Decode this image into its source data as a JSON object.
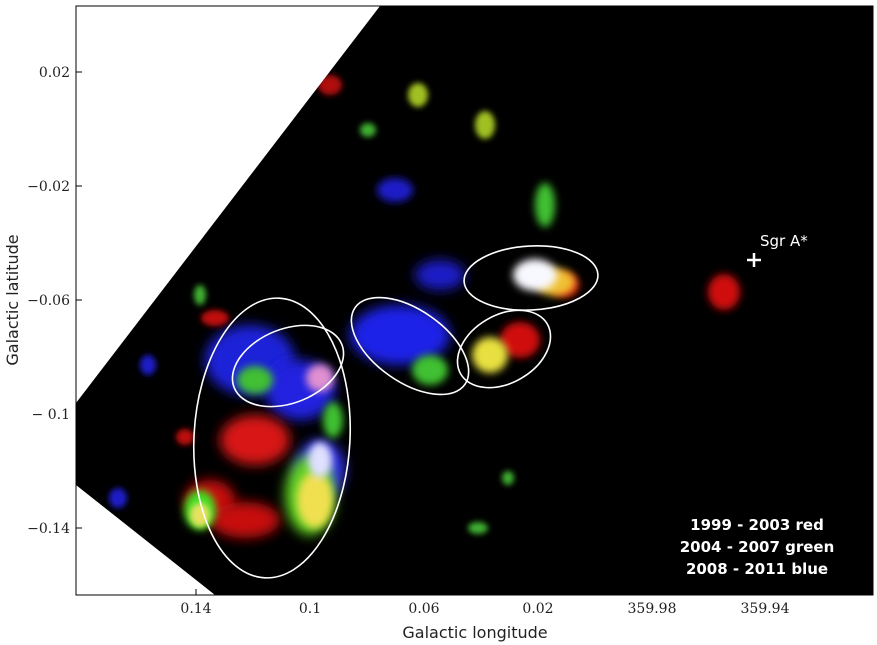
{
  "xaxis": {
    "label": "Galactic longitude",
    "ticks": [
      "0.14",
      "0.1",
      "0.06",
      "0.02",
      "359.98",
      "359.94"
    ]
  },
  "yaxis": {
    "label": "Galactic latitude",
    "ticks": [
      "0.02",
      "−0.02",
      "−0.06",
      "− 0.1",
      "−0.14"
    ]
  },
  "marker": {
    "label": "Sgr A*",
    "color": "#ffffff"
  },
  "legend": [
    {
      "text": "1999 - 2003   red",
      "color": "#ff0000"
    },
    {
      "text": "2004 - 2007 green",
      "color": "#00ff00"
    },
    {
      "text": "2008 - 2011  blue",
      "color": "#0000ff"
    }
  ],
  "colors": {
    "background": "#000000",
    "outside_field": "#ffffff",
    "region_outline": "#ffffff"
  }
}
